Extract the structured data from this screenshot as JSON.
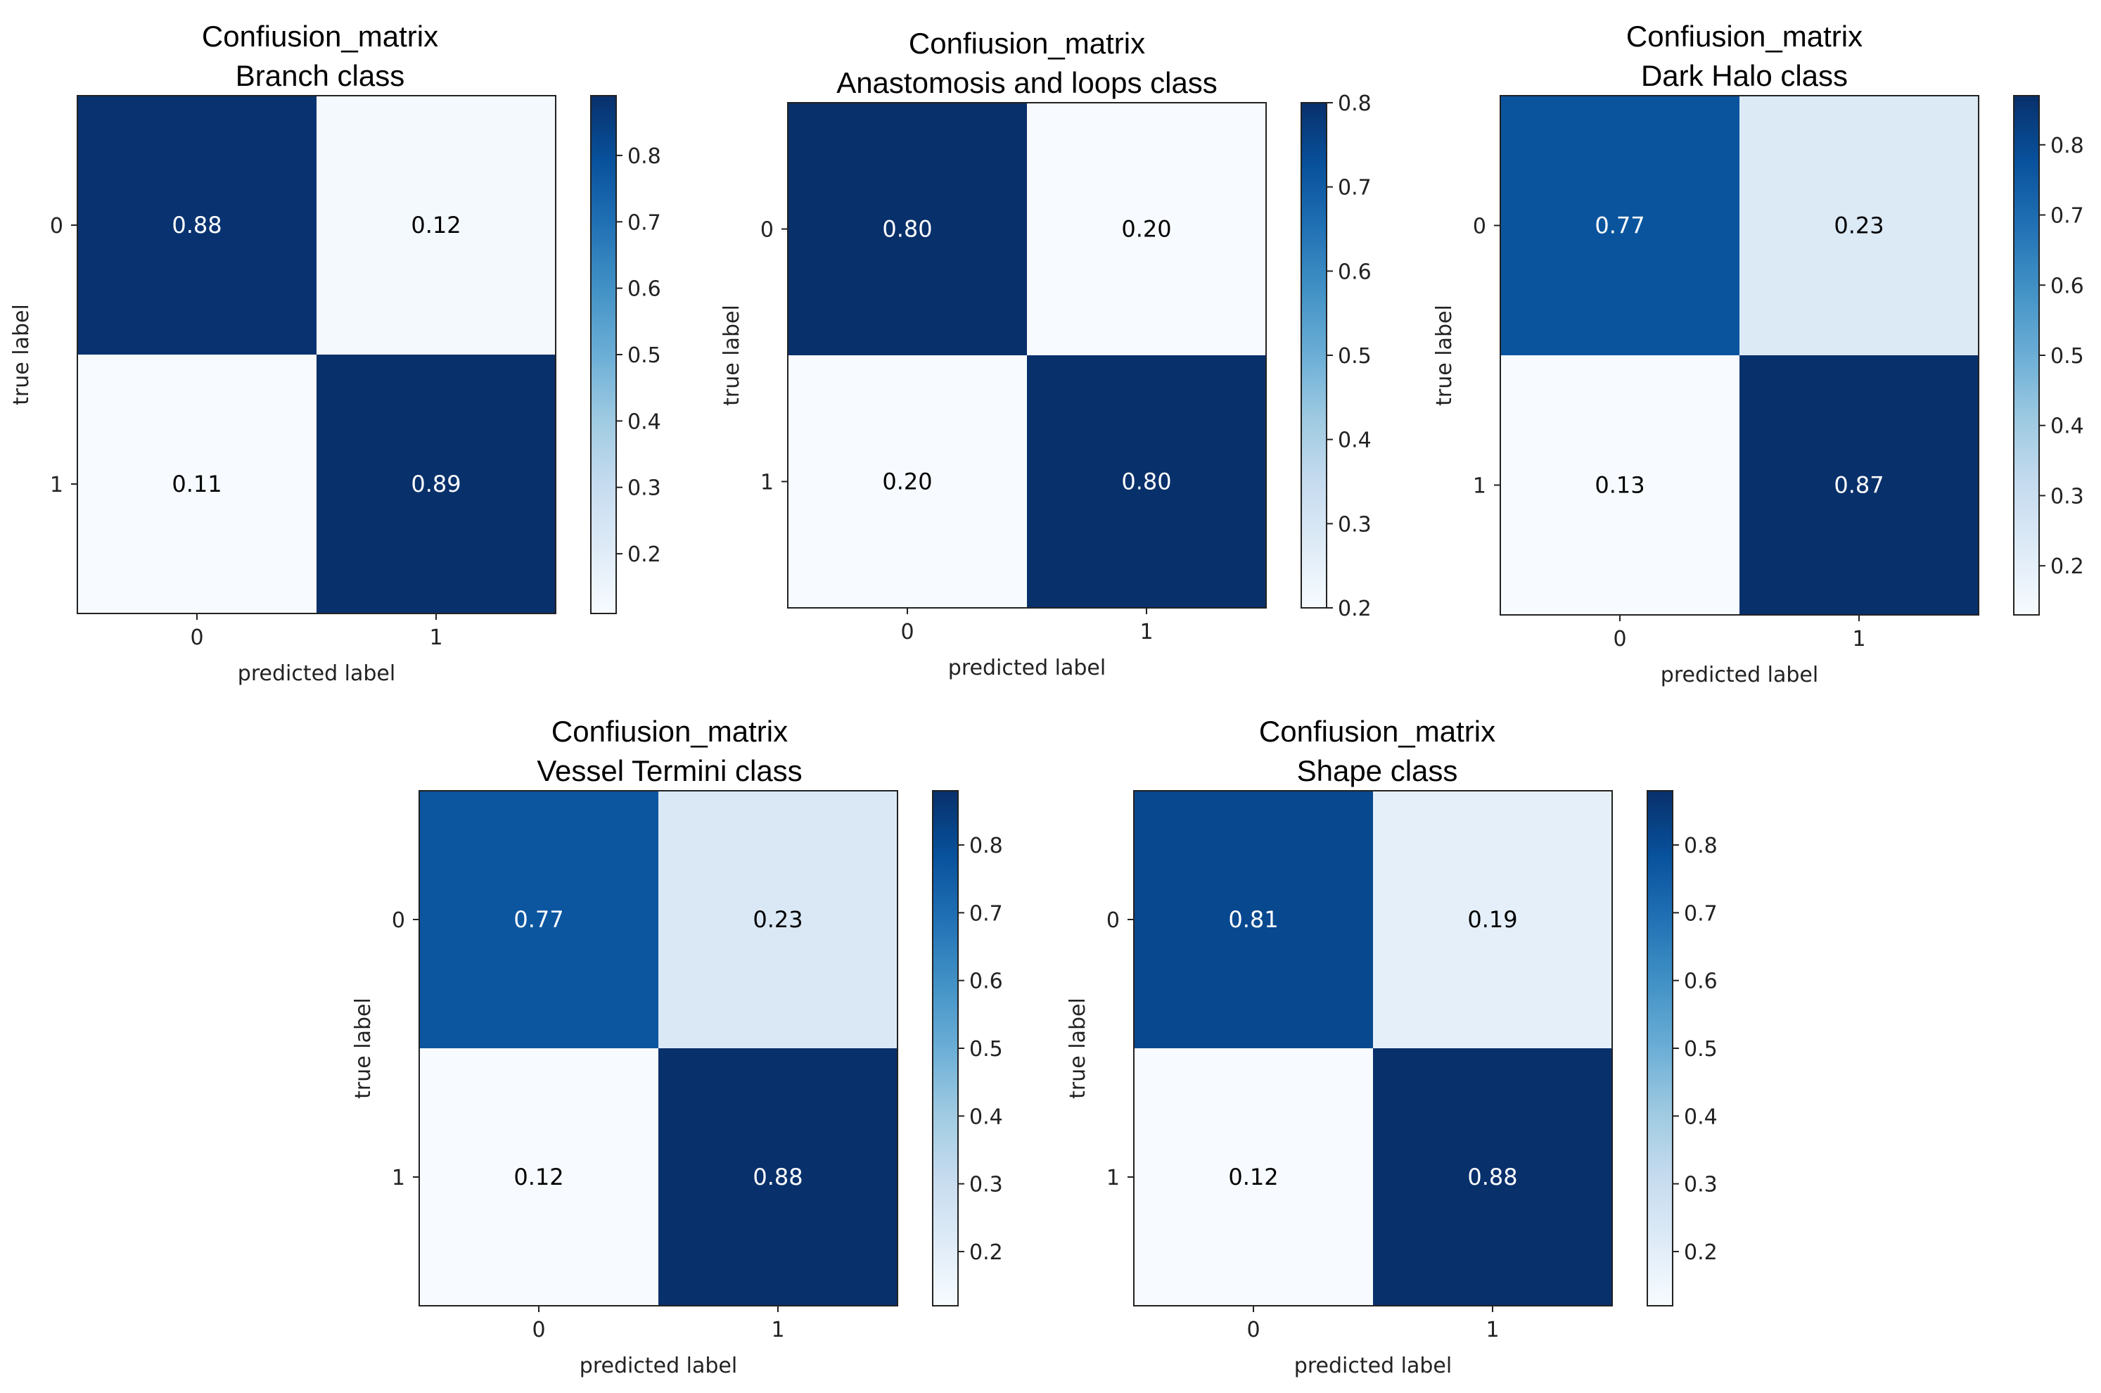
{
  "chart_data": [
    {
      "type": "heatmap",
      "title_line1": "Confiusion_matrix",
      "title_line2": "Branch class",
      "xlabel": "predicted label",
      "ylabel": "true label",
      "x_ticks": [
        "0",
        "1"
      ],
      "y_ticks": [
        "0",
        "1"
      ],
      "values": [
        [
          0.88,
          0.12
        ],
        [
          0.11,
          0.89
        ]
      ],
      "value_labels": [
        [
          "0.88",
          "0.12"
        ],
        [
          "0.11",
          "0.89"
        ]
      ],
      "colorbar_range": [
        0.11,
        0.89
      ],
      "colorbar_ticks": [
        "0.2",
        "0.3",
        "0.4",
        "0.5",
        "0.6",
        "0.7",
        "0.8"
      ],
      "colormap": "Blues"
    },
    {
      "type": "heatmap",
      "title_line1": "Confiusion_matrix",
      "title_line2": "Anastomosis and loops class",
      "xlabel": "predicted label",
      "ylabel": "true label",
      "x_ticks": [
        "0",
        "1"
      ],
      "y_ticks": [
        "0",
        "1"
      ],
      "values": [
        [
          0.8,
          0.2
        ],
        [
          0.2,
          0.8
        ]
      ],
      "value_labels": [
        [
          "0.80",
          "0.20"
        ],
        [
          "0.20",
          "0.80"
        ]
      ],
      "colorbar_range": [
        0.2,
        0.8
      ],
      "colorbar_ticks": [
        "0.2",
        "0.3",
        "0.4",
        "0.5",
        "0.6",
        "0.7",
        "0.8"
      ],
      "colormap": "Blues"
    },
    {
      "type": "heatmap",
      "title_line1": "Confiusion_matrix",
      "title_line2": "Dark Halo class",
      "xlabel": "predicted label",
      "ylabel": "true label",
      "x_ticks": [
        "0",
        "1"
      ],
      "y_ticks": [
        "0",
        "1"
      ],
      "values": [
        [
          0.77,
          0.23
        ],
        [
          0.13,
          0.87
        ]
      ],
      "value_labels": [
        [
          "0.77",
          "0.23"
        ],
        [
          "0.13",
          "0.87"
        ]
      ],
      "colorbar_range": [
        0.13,
        0.87
      ],
      "colorbar_ticks": [
        "0.2",
        "0.3",
        "0.4",
        "0.5",
        "0.6",
        "0.7",
        "0.8"
      ],
      "colormap": "Blues"
    },
    {
      "type": "heatmap",
      "title_line1": "Confiusion_matrix",
      "title_line2": "Vessel Termini class",
      "xlabel": "predicted label",
      "ylabel": "true label",
      "x_ticks": [
        "0",
        "1"
      ],
      "y_ticks": [
        "0",
        "1"
      ],
      "values": [
        [
          0.77,
          0.23
        ],
        [
          0.12,
          0.88
        ]
      ],
      "value_labels": [
        [
          "0.77",
          "0.23"
        ],
        [
          "0.12",
          "0.88"
        ]
      ],
      "colorbar_range": [
        0.12,
        0.88
      ],
      "colorbar_ticks": [
        "0.2",
        "0.3",
        "0.4",
        "0.5",
        "0.6",
        "0.7",
        "0.8"
      ],
      "colormap": "Blues"
    },
    {
      "type": "heatmap",
      "title_line1": "Confiusion_matrix",
      "title_line2": "Shape class",
      "xlabel": "predicted label",
      "ylabel": "true label",
      "x_ticks": [
        "0",
        "1"
      ],
      "y_ticks": [
        "0",
        "1"
      ],
      "values": [
        [
          0.81,
          0.19
        ],
        [
          0.12,
          0.88
        ]
      ],
      "value_labels": [
        [
          "0.81",
          "0.19"
        ],
        [
          "0.12",
          "0.88"
        ]
      ],
      "colorbar_range": [
        0.12,
        0.88
      ],
      "colorbar_ticks": [
        "0.2",
        "0.3",
        "0.4",
        "0.5",
        "0.6",
        "0.7",
        "0.8"
      ],
      "colormap": "Blues"
    }
  ]
}
